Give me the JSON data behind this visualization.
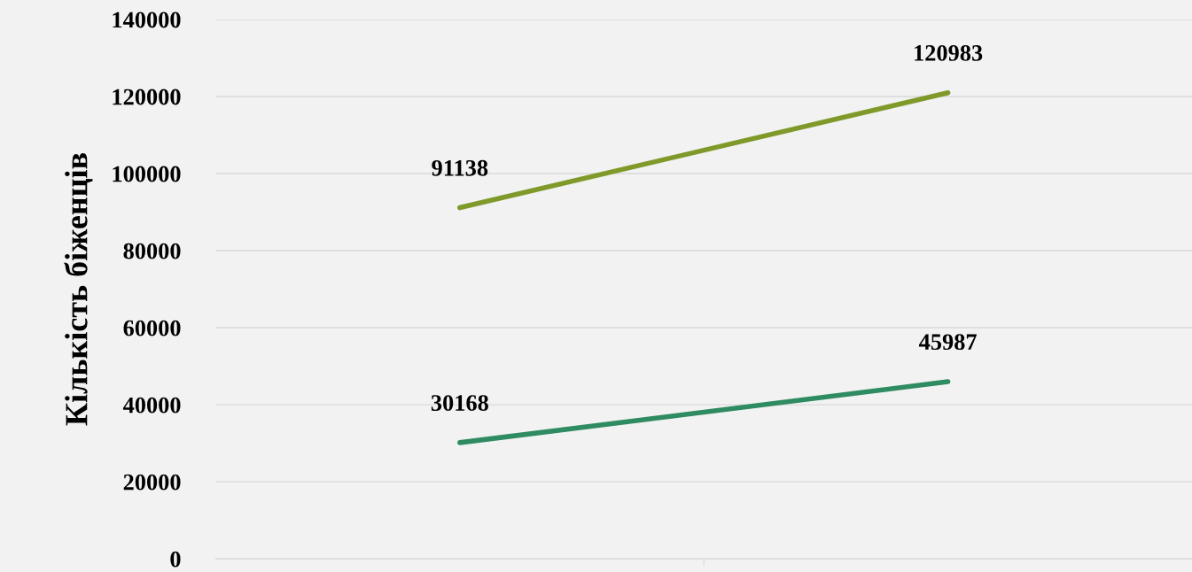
{
  "chart_data": {
    "type": "line",
    "ylabel": "Кількість біженців",
    "categories": [
      null,
      null
    ],
    "series": [
      {
        "color": "#7f9a2a",
        "values": [
          91138,
          120983
        ]
      },
      {
        "color": "#2e8b62",
        "values": [
          30168,
          45987
        ]
      }
    ],
    "ylim": [
      0,
      140000
    ],
    "yticks": [
      0,
      20000,
      40000,
      60000,
      80000,
      100000,
      120000,
      140000
    ],
    "grid": "y",
    "data_labels": true,
    "marker": "none",
    "line_style": "solid",
    "legend": false
  }
}
